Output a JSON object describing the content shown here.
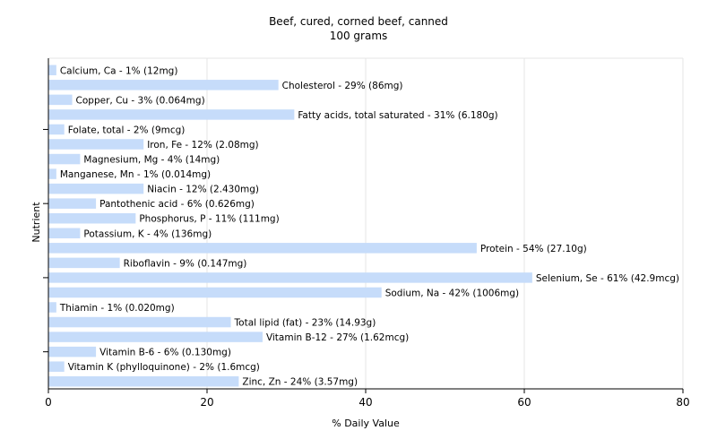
{
  "chart_data": {
    "type": "bar",
    "orientation": "horizontal",
    "title": "Beef, cured, corned beef, canned",
    "subtitle": "100 grams",
    "xlabel": "% Daily Value",
    "ylabel": "Nutrient",
    "xlim": [
      0,
      80
    ],
    "xticks": [
      0,
      20,
      40,
      60,
      80
    ],
    "grid": true,
    "bar_color": "#c6dcfa",
    "categories": [
      "Calcium, Ca",
      "Cholesterol",
      "Copper, Cu",
      "Fatty acids, total saturated",
      "Folate, total",
      "Iron, Fe",
      "Magnesium, Mg",
      "Manganese, Mn",
      "Niacin",
      "Pantothenic acid",
      "Phosphorus, P",
      "Potassium, K",
      "Protein",
      "Riboflavin",
      "Selenium, Se",
      "Sodium, Na",
      "Thiamin",
      "Total lipid (fat)",
      "Vitamin B-12",
      "Vitamin B-6",
      "Vitamin K (phylloquinone)",
      "Zinc, Zn"
    ],
    "values": [
      1,
      29,
      3,
      31,
      2,
      12,
      4,
      1,
      12,
      6,
      11,
      4,
      54,
      9,
      61,
      42,
      1,
      23,
      27,
      6,
      2,
      24
    ],
    "labels": [
      "Calcium, Ca - 1% (12mg)",
      "Cholesterol - 29% (86mg)",
      "Copper, Cu - 3% (0.064mg)",
      "Fatty acids, total saturated - 31% (6.180g)",
      "Folate, total - 2% (9mcg)",
      "Iron, Fe - 12% (2.08mg)",
      "Magnesium, Mg - 4% (14mg)",
      "Manganese, Mn - 1% (0.014mg)",
      "Niacin - 12% (2.430mg)",
      "Pantothenic acid - 6% (0.626mg)",
      "Phosphorus, P - 11% (111mg)",
      "Potassium, K - 4% (136mg)",
      "Protein - 54% (27.10g)",
      "Riboflavin - 9% (0.147mg)",
      "Selenium, Se - 61% (42.9mcg)",
      "Sodium, Na - 42% (1006mg)",
      "Thiamin - 1% (0.020mg)",
      "Total lipid (fat) - 23% (14.93g)",
      "Vitamin B-12 - 27% (1.62mcg)",
      "Vitamin B-6 - 6% (0.130mg)",
      "Vitamin K (phylloquinone) - 2% (1.6mcg)",
      "Zinc, Zn - 24% (3.57mg)"
    ]
  }
}
